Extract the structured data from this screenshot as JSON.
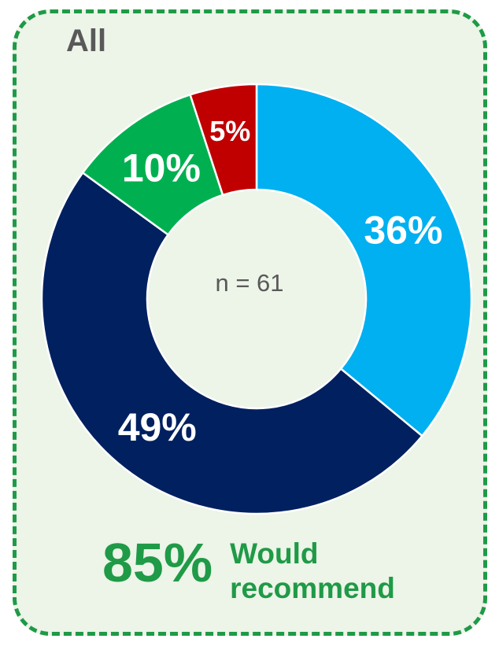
{
  "panel": {
    "title": "All",
    "border_color": "#1f9a47",
    "background": "#edf4e8"
  },
  "summary": {
    "value": "85%",
    "label_line1": "Would",
    "label_line2": "recommend",
    "color": "#1f9a47"
  },
  "chart_data": {
    "type": "pie",
    "donut": true,
    "center_label": "n = 61",
    "slices": [
      {
        "value": 36,
        "label": "36%",
        "color": "#00b0f0"
      },
      {
        "value": 49,
        "label": "49%",
        "color": "#002060"
      },
      {
        "value": 10,
        "label": "10%",
        "color": "#00b050"
      },
      {
        "value": 5,
        "label": "5%",
        "color": "#c00000"
      }
    ]
  }
}
